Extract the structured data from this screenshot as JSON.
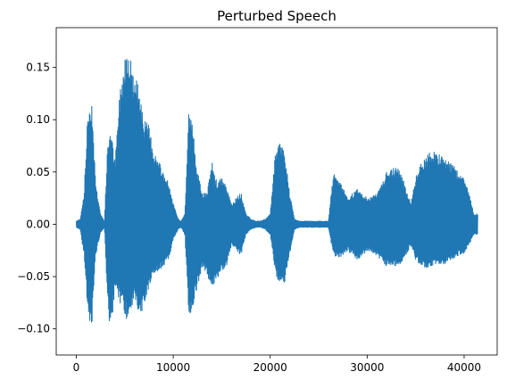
{
  "chart_data": {
    "type": "line",
    "title": "Perturbed Speech",
    "xlabel": "",
    "ylabel": "",
    "xlim": [
      -2070,
      43410
    ],
    "ylim": [
      -0.125,
      0.188
    ],
    "xticks": [
      0,
      10000,
      20000,
      30000,
      40000
    ],
    "xtick_labels": [
      "0",
      "10000",
      "20000",
      "30000",
      "40000"
    ],
    "yticks": [
      -0.1,
      -0.05,
      0.0,
      0.05,
      0.1,
      0.15
    ],
    "ytick_labels": [
      "−0.10",
      "−0.05",
      "0.00",
      "0.05",
      "0.10",
      "0.15"
    ],
    "grid": false,
    "legend": "none",
    "series": [
      {
        "color": "#1f77b4",
        "envelope": {
          "x": [
            0,
            400,
            800,
            1200,
            1600,
            2000,
            2500,
            2900,
            3200,
            3500,
            4000,
            4500,
            5000,
            5300,
            5600,
            6000,
            6500,
            7000,
            7500,
            8000,
            8500,
            9000,
            9500,
            10000,
            10500,
            10800,
            11200,
            11600,
            12000,
            12500,
            13000,
            13500,
            14000,
            14500,
            15000,
            15500,
            16000,
            16500,
            17000,
            17500,
            18000,
            18500,
            19000,
            19500,
            20000,
            20500,
            21000,
            21500,
            22000,
            22500,
            23000,
            24000,
            25000,
            26000,
            26500,
            27000,
            27500,
            28000,
            28500,
            29000,
            29500,
            30000,
            31000,
            32000,
            33000,
            33500,
            34000,
            34500,
            35000,
            35500,
            36000,
            36500,
            37000,
            37500,
            38000,
            38500,
            39000,
            39500,
            40000,
            40500,
            41000,
            41400
          ],
          "upper": [
            0.003,
            0.005,
            0.03,
            0.11,
            0.12,
            0.04,
            0.01,
            0.003,
            0.07,
            0.095,
            0.06,
            0.13,
            0.16,
            0.175,
            0.16,
            0.14,
            0.135,
            0.1,
            0.095,
            0.07,
            0.06,
            0.05,
            0.04,
            0.02,
            0.005,
            0.003,
            0.01,
            0.11,
            0.095,
            0.05,
            0.03,
            0.03,
            0.06,
            0.04,
            0.045,
            0.035,
            0.02,
            0.025,
            0.03,
            0.01,
            0.005,
            0.003,
            0.003,
            0.005,
            0.01,
            0.065,
            0.08,
            0.07,
            0.03,
            0.005,
            0.003,
            0.003,
            0.003,
            0.003,
            0.048,
            0.045,
            0.035,
            0.025,
            0.03,
            0.035,
            0.03,
            0.025,
            0.03,
            0.05,
            0.055,
            0.05,
            0.035,
            0.02,
            0.045,
            0.06,
            0.065,
            0.07,
            0.07,
            0.068,
            0.065,
            0.06,
            0.055,
            0.05,
            0.045,
            0.03,
            0.01,
            0.01
          ],
          "lower": [
            -0.003,
            -0.005,
            -0.03,
            -0.085,
            -0.1,
            -0.03,
            -0.008,
            -0.003,
            -0.07,
            -0.11,
            -0.06,
            -0.075,
            -0.085,
            -0.095,
            -0.085,
            -0.07,
            -0.09,
            -0.08,
            -0.06,
            -0.05,
            -0.045,
            -0.04,
            -0.035,
            -0.015,
            -0.005,
            -0.003,
            -0.01,
            -0.09,
            -0.08,
            -0.06,
            -0.04,
            -0.05,
            -0.06,
            -0.055,
            -0.045,
            -0.04,
            -0.02,
            -0.025,
            -0.03,
            -0.01,
            -0.005,
            -0.003,
            -0.003,
            -0.005,
            -0.01,
            -0.045,
            -0.06,
            -0.055,
            -0.03,
            -0.005,
            -0.003,
            -0.003,
            -0.003,
            -0.003,
            -0.03,
            -0.032,
            -0.03,
            -0.025,
            -0.03,
            -0.035,
            -0.03,
            -0.025,
            -0.03,
            -0.04,
            -0.04,
            -0.038,
            -0.03,
            -0.02,
            -0.035,
            -0.04,
            -0.042,
            -0.042,
            -0.04,
            -0.04,
            -0.038,
            -0.035,
            -0.032,
            -0.03,
            -0.028,
            -0.02,
            -0.01,
            -0.01
          ]
        }
      }
    ]
  }
}
